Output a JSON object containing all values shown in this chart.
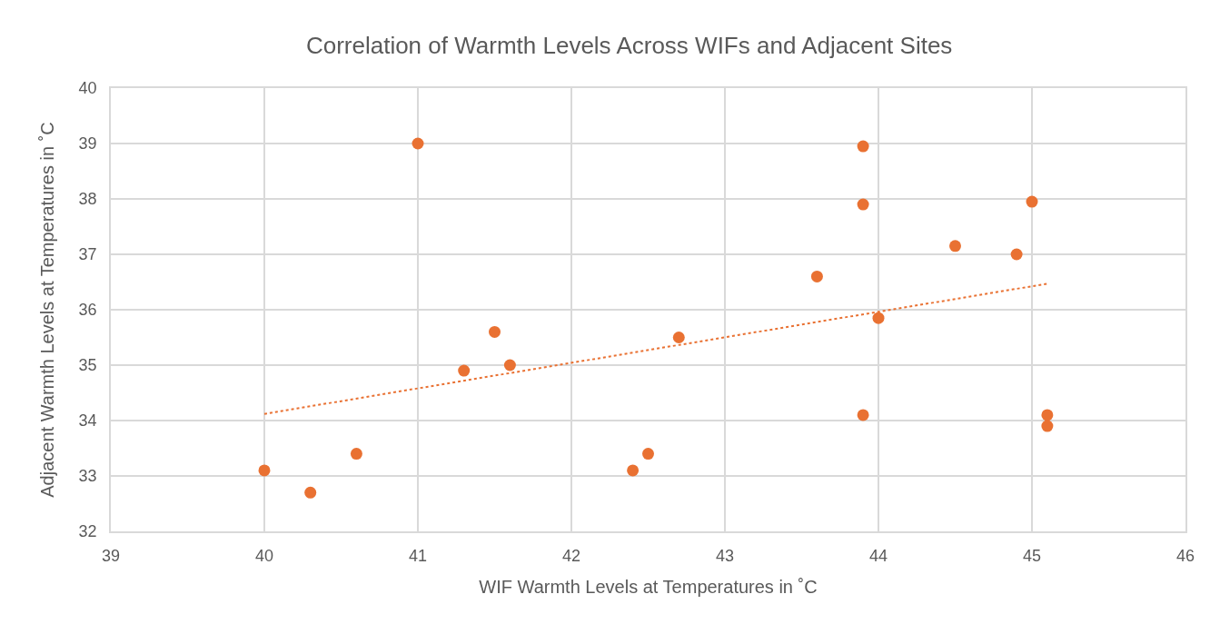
{
  "chart_data": {
    "type": "scatter",
    "title": "Correlation of Warmth Levels Across WIFs and Adjacent Sites",
    "xlabel": "WIF Warmth Levels at Temperatures in ˚C",
    "ylabel": "Adjacent Warmth Levels at Temperatures in ˚C",
    "x": [
      40.0,
      40.3,
      40.6,
      41.0,
      41.3,
      41.5,
      41.6,
      42.4,
      42.5,
      42.7,
      43.6,
      43.9,
      43.9,
      43.9,
      44.0,
      44.5,
      44.9,
      45.0,
      45.1,
      45.1
    ],
    "series": [
      {
        "color": "#e97132",
        "marker": "circle",
        "values": [
          33.1,
          32.7,
          33.4,
          39.0,
          34.9,
          35.6,
          35.0,
          33.1,
          33.4,
          35.5,
          36.6,
          38.95,
          37.9,
          34.1,
          35.85,
          37.15,
          37.0,
          37.95,
          34.1,
          33.9
        ]
      },
      {
        "type": "line",
        "color": "#e97132",
        "marker": "none",
        "line_style": "dotted",
        "x": [
          40.0,
          45.1
        ],
        "values": [
          34.12,
          36.47
        ]
      }
    ],
    "grid": true,
    "xlim": [
      39,
      46
    ],
    "xticks": [
      39,
      40,
      41,
      42,
      43,
      44,
      45,
      46
    ],
    "ylim": [
      32,
      40
    ],
    "yticks": [
      32,
      33,
      34,
      35,
      36,
      37,
      38,
      39,
      40
    ]
  }
}
